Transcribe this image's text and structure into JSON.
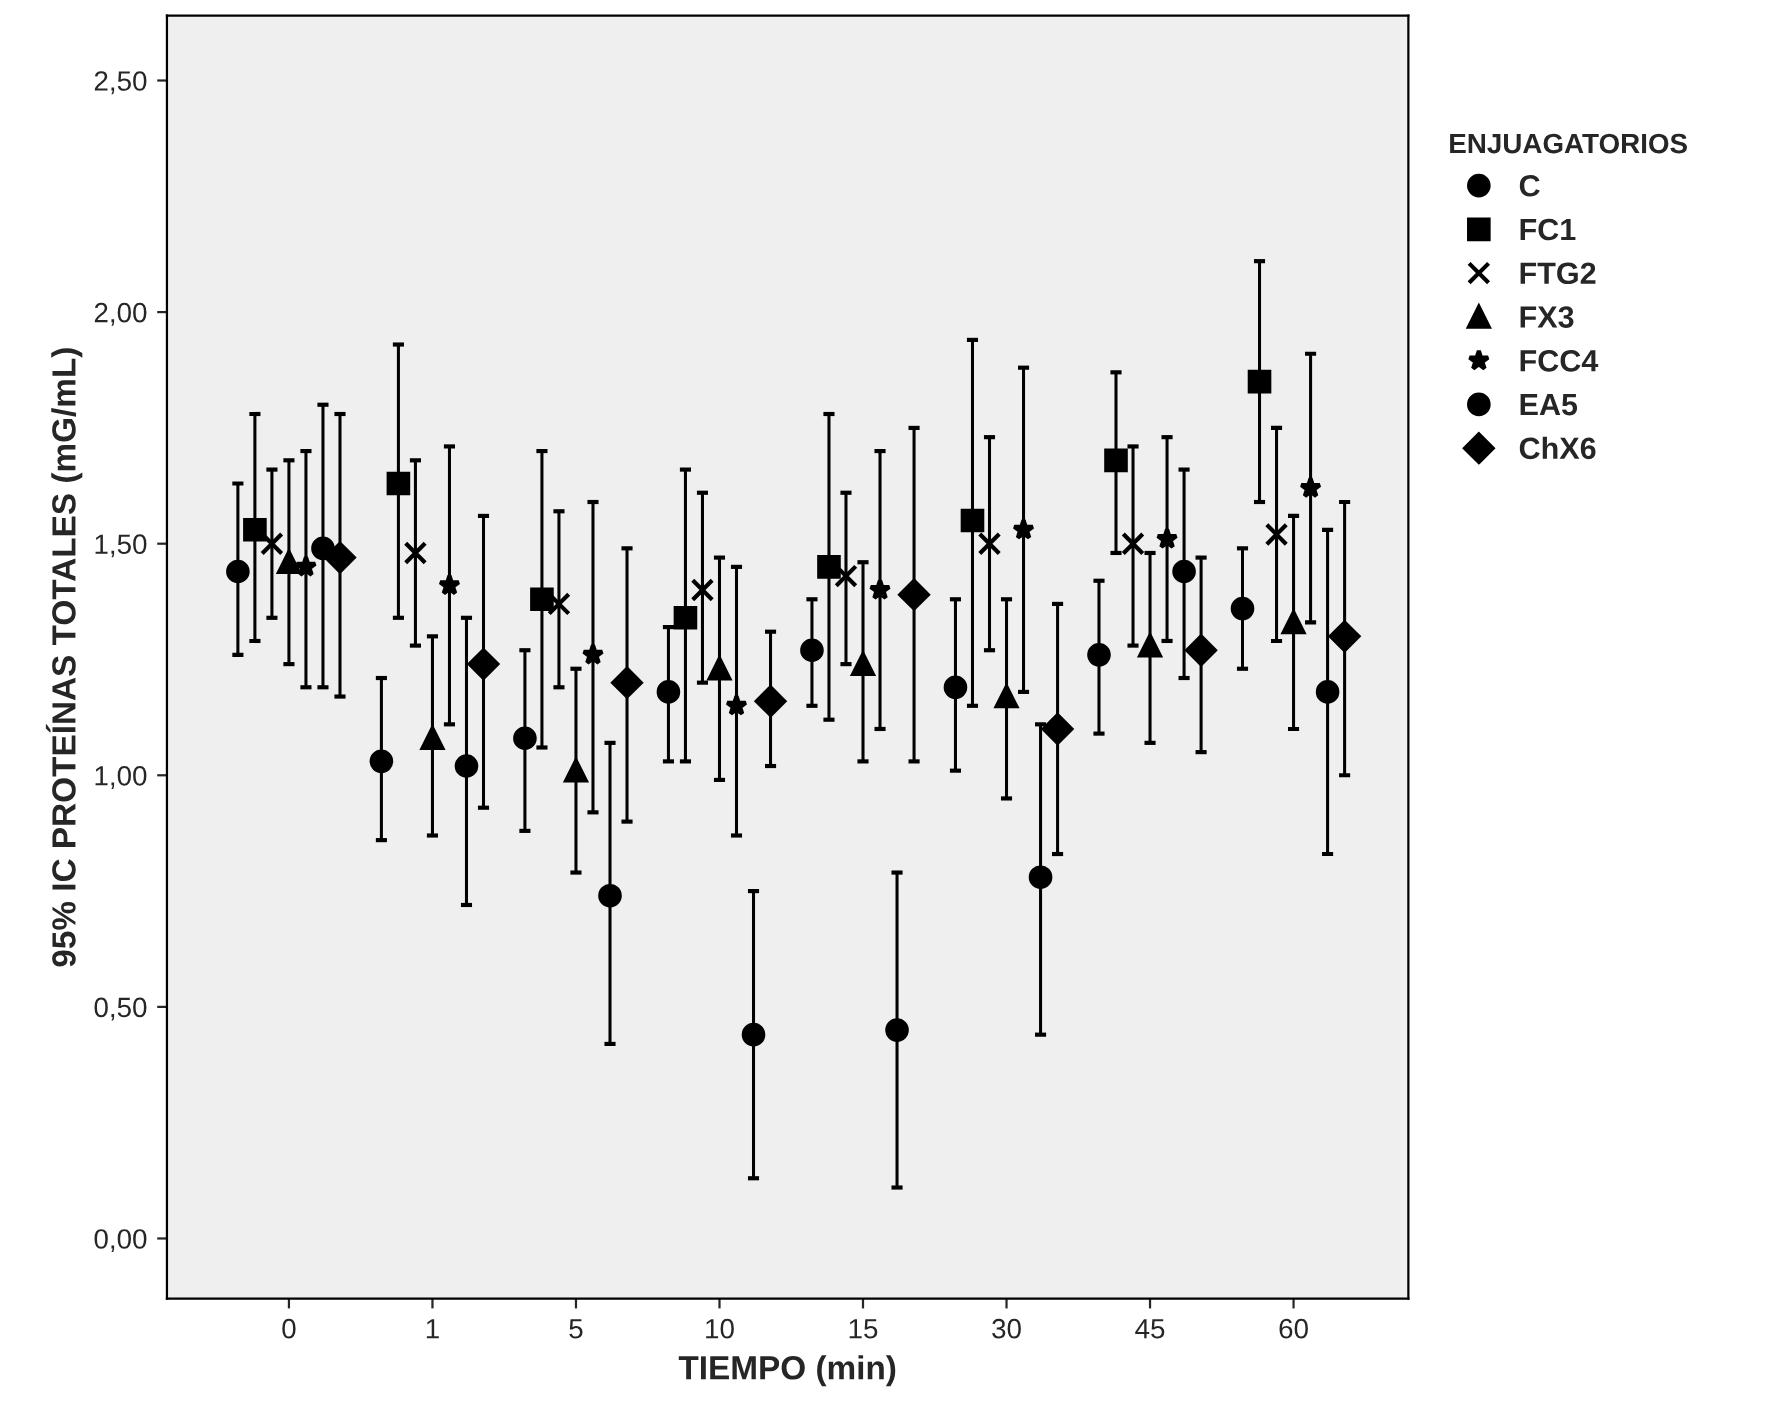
{
  "chart_data": {
    "type": "scatter",
    "xlabel": "TIEMPO (min)",
    "ylabel": "95% IC PROTEÍNAS TOTALES (mG/mL)",
    "legend_title": "ENJUAGATORIOS",
    "legend": "right",
    "grid": false,
    "categories": [
      "0",
      "1",
      "5",
      "10",
      "15",
      "30",
      "45",
      "60"
    ],
    "ylim": [
      -0.13,
      2.64
    ],
    "yticks": [
      {
        "value": 0,
        "label": "0,00"
      },
      {
        "value": 0.5,
        "label": "0,50"
      },
      {
        "value": 1,
        "label": "1,00"
      },
      {
        "value": 1.5,
        "label": "1,50"
      },
      {
        "value": 2,
        "label": "2,00"
      },
      {
        "value": 2.5,
        "label": "2,50"
      }
    ],
    "series": [
      {
        "name": "C",
        "color": "#000000",
        "marker": "circle",
        "values": [
          1.44,
          1.03,
          1.08,
          1.18,
          1.27,
          1.19,
          1.26,
          1.36
        ],
        "errors": [
          [
            1.26,
            1.63
          ],
          [
            0.86,
            1.21
          ],
          [
            0.88,
            1.27
          ],
          [
            1.03,
            1.32
          ],
          [
            1.15,
            1.38
          ],
          [
            1.01,
            1.38
          ],
          [
            1.09,
            1.42
          ],
          [
            1.23,
            1.49
          ]
        ]
      },
      {
        "name": "FC1",
        "color": "#000000",
        "marker": "square",
        "values": [
          1.53,
          1.63,
          1.38,
          1.34,
          1.45,
          1.55,
          1.68,
          1.85
        ],
        "errors": [
          [
            1.29,
            1.78
          ],
          [
            1.34,
            1.93
          ],
          [
            1.06,
            1.7
          ],
          [
            1.03,
            1.66
          ],
          [
            1.12,
            1.78
          ],
          [
            1.15,
            1.94
          ],
          [
            1.48,
            1.87
          ],
          [
            1.59,
            2.11
          ]
        ]
      },
      {
        "name": "FTG2",
        "color": "#000000",
        "marker": "cross",
        "values": [
          1.5,
          1.48,
          1.37,
          1.4,
          1.43,
          1.5,
          1.5,
          1.52
        ],
        "errors": [
          [
            1.34,
            1.66
          ],
          [
            1.28,
            1.68
          ],
          [
            1.19,
            1.57
          ],
          [
            1.2,
            1.61
          ],
          [
            1.24,
            1.61
          ],
          [
            1.27,
            1.73
          ],
          [
            1.28,
            1.71
          ],
          [
            1.29,
            1.75
          ]
        ]
      },
      {
        "name": "FX3",
        "color": "#000000",
        "marker": "triangle",
        "values": [
          1.46,
          1.08,
          1.01,
          1.23,
          1.24,
          1.17,
          1.28,
          1.33
        ],
        "errors": [
          [
            1.24,
            1.68
          ],
          [
            0.87,
            1.3
          ],
          [
            0.79,
            1.23
          ],
          [
            0.99,
            1.47
          ],
          [
            1.03,
            1.46
          ],
          [
            0.95,
            1.38
          ],
          [
            1.07,
            1.48
          ],
          [
            1.1,
            1.56
          ]
        ]
      },
      {
        "name": "FCC4",
        "color": "#000000",
        "marker": "star",
        "values": [
          1.45,
          1.41,
          1.26,
          1.15,
          1.4,
          1.53,
          1.51,
          1.62
        ],
        "errors": [
          [
            1.19,
            1.7
          ],
          [
            1.11,
            1.71
          ],
          [
            0.92,
            1.59
          ],
          [
            0.87,
            1.45
          ],
          [
            1.1,
            1.7
          ],
          [
            1.18,
            1.88
          ],
          [
            1.29,
            1.73
          ],
          [
            1.33,
            1.91
          ]
        ]
      },
      {
        "name": "EA5",
        "color": "#000000",
        "marker": "circle",
        "values": [
          1.49,
          1.02,
          0.74,
          0.44,
          0.45,
          0.78,
          1.44,
          1.18
        ],
        "errors": [
          [
            1.19,
            1.8
          ],
          [
            0.72,
            1.34
          ],
          [
            0.42,
            1.07
          ],
          [
            0.13,
            0.75
          ],
          [
            0.11,
            0.79
          ],
          [
            0.44,
            1.11
          ],
          [
            1.21,
            1.66
          ],
          [
            0.83,
            1.53
          ]
        ]
      },
      {
        "name": "ChX6",
        "color": "#000000",
        "marker": "diamond",
        "values": [
          1.47,
          1.24,
          1.2,
          1.16,
          1.39,
          1.1,
          1.27,
          1.3
        ],
        "errors": [
          [
            1.17,
            1.78
          ],
          [
            0.93,
            1.56
          ],
          [
            0.9,
            1.49
          ],
          [
            1.02,
            1.31
          ],
          [
            1.03,
            1.75
          ],
          [
            0.83,
            1.37
          ],
          [
            1.05,
            1.47
          ],
          [
            1.0,
            1.59
          ]
        ]
      }
    ]
  }
}
